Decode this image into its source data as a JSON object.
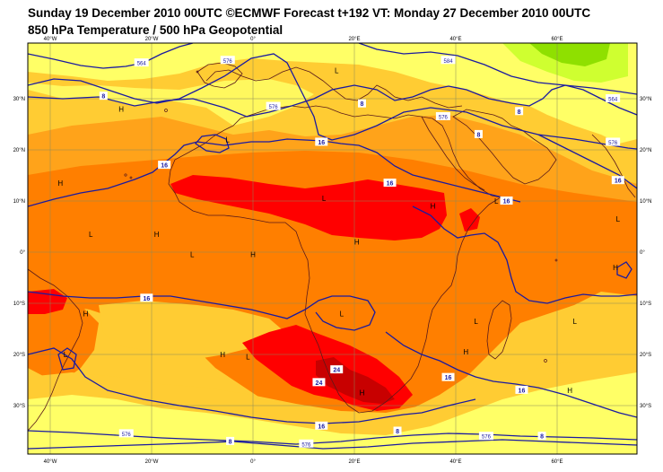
{
  "header": {
    "line1": "Sunday 19 December 2010 00UTC ©ECMWF Forecast t+192 VT: Monday 27 December 2010 00UTC",
    "line2": "850 hPa Temperature / 500 hPa Geopotential"
  },
  "axes": {
    "lon_labels": [
      "40°W",
      "20°W",
      "0°",
      "20°E",
      "40°E",
      "60°E"
    ],
    "lat_labels": [
      "30°N",
      "20°N",
      "10°N",
      "0°",
      "10°S",
      "20°S",
      "30°S"
    ]
  },
  "colors": {
    "ocean_base": "#ffcc33",
    "pale_yellow": "#ffff66",
    "light_orange": "#ffa31a",
    "orange": "#ff7f00",
    "red": "#ff0000",
    "dark_red": "#c80000",
    "green": "#8fe000",
    "light_green": "#cfff30",
    "contour": "#1a1aa0",
    "coast": "#5a1a1a",
    "grid": "#8a8a5a"
  },
  "geopotential_labels": [
    {
      "text": "564",
      "lon": -22,
      "lat": 37
    },
    {
      "text": "576",
      "lon": -5,
      "lat": 37.5
    },
    {
      "text": "584",
      "lon": 38.5,
      "lat": 37.5
    },
    {
      "text": "576",
      "lon": 4,
      "lat": 28.5
    },
    {
      "text": "576",
      "lon": 37.5,
      "lat": 26.5
    },
    {
      "text": "564",
      "lon": 71,
      "lat": 30
    },
    {
      "text": "576",
      "lon": 71,
      "lat": 21.5
    },
    {
      "text": "576",
      "lon": -25,
      "lat": -35.5
    },
    {
      "text": "576",
      "lon": 10.5,
      "lat": -37.5
    },
    {
      "text": "576",
      "lon": 46,
      "lat": -36
    }
  ],
  "temperature_labels": [
    {
      "text": "8",
      "lon": -29.5,
      "lat": 30.5
    },
    {
      "text": "8",
      "lon": 21.5,
      "lat": 29
    },
    {
      "text": "8",
      "lon": 52.5,
      "lat": 27.5
    },
    {
      "text": "8",
      "lon": 44.5,
      "lat": 23
    },
    {
      "text": "16",
      "lon": 13.5,
      "lat": 21.5
    },
    {
      "text": "16",
      "lon": -17.5,
      "lat": 17
    },
    {
      "text": "16",
      "lon": 27,
      "lat": 13.5
    },
    {
      "text": "16",
      "lon": 50,
      "lat": 10
    },
    {
      "text": "16",
      "lon": 72,
      "lat": 14
    },
    {
      "text": "16",
      "lon": -21,
      "lat": -9
    },
    {
      "text": "16",
      "lon": 38.5,
      "lat": -24.5
    },
    {
      "text": "16",
      "lon": 53,
      "lat": -27
    },
    {
      "text": "16",
      "lon": 13.5,
      "lat": -34
    },
    {
      "text": "8",
      "lon": -4.5,
      "lat": -37
    },
    {
      "text": "8",
      "lon": 28.5,
      "lat": -35
    },
    {
      "text": "8",
      "lon": 57,
      "lat": -36
    },
    {
      "text": "24",
      "lon": 16.5,
      "lat": -23
    },
    {
      "text": "24",
      "lon": 13,
      "lat": -25.5
    }
  ],
  "pressure_centres": [
    {
      "text": "L",
      "lon": 16.5,
      "lat": 35
    },
    {
      "text": "L",
      "lon": -5,
      "lat": 21.5
    },
    {
      "text": "H",
      "lon": -26,
      "lat": 27.5
    },
    {
      "text": "H",
      "lon": -38,
      "lat": 13
    },
    {
      "text": "L",
      "lon": -32,
      "lat": 3
    },
    {
      "text": "H",
      "lon": -19,
      "lat": 3
    },
    {
      "text": "L",
      "lon": -12,
      "lat": -1
    },
    {
      "text": "H",
      "lon": 0,
      "lat": -1
    },
    {
      "text": "L",
      "lon": 14,
      "lat": 10
    },
    {
      "text": "H",
      "lon": 20.5,
      "lat": 1.5
    },
    {
      "text": "H",
      "lon": 35.5,
      "lat": 8.5
    },
    {
      "text": "L",
      "lon": 48,
      "lat": 9.5
    },
    {
      "text": "L",
      "lon": 72,
      "lat": 6
    },
    {
      "text": "H",
      "lon": 71.5,
      "lat": -3.5
    },
    {
      "text": "H",
      "lon": -33,
      "lat": -12.5
    },
    {
      "text": "L",
      "lon": -37,
      "lat": -20.5
    },
    {
      "text": "H",
      "lon": -6,
      "lat": -20.5
    },
    {
      "text": "L",
      "lon": -1,
      "lat": -21
    },
    {
      "text": "L",
      "lon": 17.5,
      "lat": -12.5
    },
    {
      "text": "L",
      "lon": 44,
      "lat": -14
    },
    {
      "text": "L",
      "lon": 63.5,
      "lat": -14
    },
    {
      "text": "H",
      "lon": 42,
      "lat": -20
    },
    {
      "text": "H",
      "lon": 21.5,
      "lat": -28
    },
    {
      "text": "H",
      "lon": 62.5,
      "lat": -27.5
    }
  ]
}
